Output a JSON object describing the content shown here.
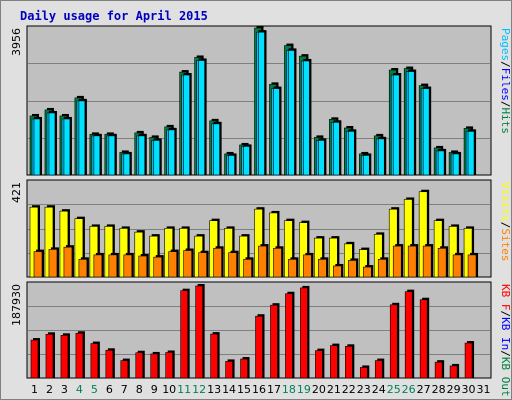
{
  "title": "Daily usage for April 2015",
  "colors": {
    "hits": "#008040",
    "files": "#00c0ff",
    "pages": "#00e0ff",
    "visits": "#ffff00",
    "sites": "#ff8000",
    "kbin": "#ff0000",
    "kbout": "#0000ff",
    "weekend_day": "#00805c",
    "plot_bg": "#c0c0c0"
  },
  "chart_data": [
    {
      "type": "bar",
      "name": "hits-files-pages",
      "ymax_label": "3956",
      "ylim": [
        0,
        3956
      ],
      "legend": [
        {
          "text": "Pages",
          "color": "#00c0ff"
        },
        {
          "text": "/",
          "color": "#000000"
        },
        {
          "text": "Files",
          "color": "#0000ff"
        },
        {
          "text": "/",
          "color": "#000000"
        },
        {
          "text": "Hits",
          "color": "#008040"
        }
      ],
      "series": [
        {
          "key": "hits",
          "values": [
            1589,
            1751,
            1589,
            2075,
            1093,
            1093,
            607,
            1133,
            1012,
            1295,
            2770,
            3163,
            1457,
            567,
            809,
            3956,
            2439,
            3483,
            3198,
            1012,
            1498,
            1265,
            567,
            1053,
            2825,
            2865,
            2406,
            729,
            607,
            1254
          ]
        },
        {
          "key": "files",
          "values": [
            1508,
            1670,
            1508,
            1994,
            1053,
            1053,
            567,
            1053,
            931,
            1214,
            2690,
            3082,
            1376,
            526,
            769,
            3843,
            2326,
            3352,
            3069,
            931,
            1417,
            1174,
            526,
            972,
            2690,
            2784,
            2325,
            648,
            567,
            1174
          ]
        },
        {
          "key": "pages",
          "values": [
            1508,
            1670,
            1508,
            1994,
            1053,
            1053,
            567,
            1053,
            931,
            1214,
            2690,
            3082,
            1376,
            526,
            769,
            3843,
            2326,
            3352,
            3069,
            931,
            1417,
            1174,
            526,
            972,
            2690,
            2784,
            2325,
            648,
            567,
            1174
          ]
        }
      ]
    },
    {
      "type": "bar",
      "name": "visits-sites",
      "ymax_label": "421",
      "ylim": [
        0,
        421
      ],
      "legend": [
        {
          "text": "Visits",
          "color": "#ffff00"
        },
        {
          "text": "/",
          "color": "#000000"
        },
        {
          "text": "Sites",
          "color": "#ff8000"
        }
      ],
      "series": [
        {
          "key": "visits",
          "values": [
            316,
            316,
            298,
            264,
            229,
            229,
            220,
            203,
            185,
            220,
            220,
            185,
            255,
            220,
            185,
            307,
            290,
            255,
            246,
            176,
            176,
            150,
            124,
            193,
            307,
            351,
            386,
            255,
            229,
            220
          ]
        },
        {
          "key": "sites",
          "values": [
            115,
            125,
            135,
            80,
            100,
            100,
            100,
            95,
            90,
            115,
            120,
            110,
            130,
            110,
            80,
            140,
            130,
            80,
            100,
            80,
            50,
            75,
            45,
            80,
            140,
            140,
            140,
            130,
            100,
            100
          ]
        }
      ]
    },
    {
      "type": "bar",
      "name": "kbin-kbout",
      "ymax_label": "187930",
      "ylim": [
        0,
        187930
      ],
      "legend": [
        {
          "text": "KB F",
          "color": "#ff0000"
        },
        {
          "text": "/",
          "color": "#000000"
        },
        {
          "text": "KB In",
          "color": "#0000ff"
        },
        {
          "text": "/",
          "color": "#000000"
        },
        {
          "text": "KB Out",
          "color": "#008040"
        }
      ],
      "series": [
        {
          "key": "kbf",
          "values": [
            77530,
            89270,
            87220,
            91390,
            70360,
            56570,
            35590,
            51580,
            49170,
            52090,
            178380,
            187930,
            89710,
            33890,
            38720,
            126200,
            148740,
            172110,
            184030,
            55920,
            66170,
            64730,
            21560,
            35590,
            149510,
            176380,
            159900,
            32370,
            24650,
            71380
          ]
        }
      ],
      "x_labels": [
        "1",
        "2",
        "3",
        "4",
        "5",
        "6",
        "7",
        "8",
        "9",
        "10",
        "11",
        "12",
        "13",
        "14",
        "15",
        "16",
        "17",
        "18",
        "19",
        "20",
        "21",
        "22",
        "23",
        "24",
        "25",
        "26",
        "27",
        "28",
        "29",
        "30",
        "31"
      ],
      "weekend_days": [
        4,
        5,
        11,
        12,
        18,
        19,
        25,
        26
      ]
    }
  ]
}
